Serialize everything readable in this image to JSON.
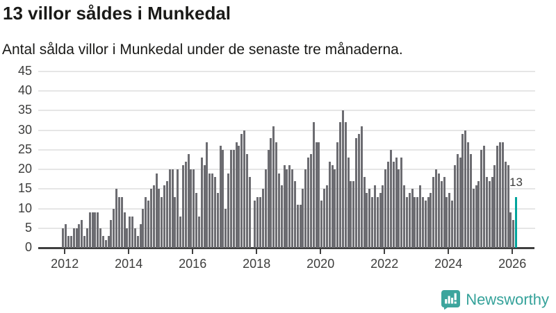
{
  "header": {
    "title": "13 villor såldes i Munkedal",
    "subtitle": "Antal sålda villor i Munkedal under de senaste tre månaderna."
  },
  "chart_data": {
    "type": "bar",
    "title": "13 villor såldes i Munkedal",
    "subtitle": "Antal sålda villor i Munkedal under de senaste tre månaderna.",
    "xlabel": "",
    "ylabel": "",
    "x_start_month": "2011-12",
    "x_end_month": "2026-02",
    "x_unit": "month",
    "values": [
      5,
      6,
      3,
      3,
      5,
      5,
      6,
      7,
      3,
      5,
      9,
      9,
      9,
      9,
      5,
      3,
      2,
      3,
      7,
      10,
      15,
      13,
      13,
      9,
      5,
      8,
      8,
      5,
      3,
      6,
      10,
      13,
      12,
      15,
      16,
      19,
      15,
      13,
      16,
      17,
      20,
      20,
      13,
      20,
      8,
      21,
      22,
      24,
      20,
      20,
      14,
      8,
      23,
      21,
      27,
      19,
      19,
      18,
      14,
      26,
      25,
      10,
      19,
      25,
      25,
      27,
      26,
      29,
      30,
      24,
      18,
      0,
      12,
      13,
      13,
      15,
      20,
      25,
      28,
      31,
      27,
      19,
      16,
      21,
      20,
      21,
      20,
      17,
      11,
      11,
      15,
      20,
      23,
      24,
      32,
      27,
      27,
      12,
      15,
      16,
      22,
      21,
      20,
      27,
      32,
      35,
      32,
      23,
      17,
      17,
      28,
      29,
      31,
      18,
      14,
      15,
      13,
      16,
      13,
      14,
      16,
      20,
      22,
      25,
      22,
      23,
      20,
      23,
      16,
      13,
      14,
      15,
      13,
      13,
      16,
      13,
      12,
      13,
      14,
      18,
      20,
      19,
      17,
      18,
      13,
      14,
      12,
      21,
      24,
      23,
      29,
      30,
      27,
      24,
      15,
      16,
      17,
      25,
      26,
      18,
      17,
      18,
      21,
      26,
      27,
      27,
      22,
      21,
      9,
      7,
      13
    ],
    "highlight": {
      "index": 170,
      "value": 13,
      "label": "13",
      "color": "#00a49c"
    },
    "bar_color": "#6c6c71",
    "grid": true,
    "legend": "none",
    "ylim": [
      0,
      45
    ],
    "yticks": [
      0,
      5,
      10,
      15,
      20,
      25,
      30,
      35,
      40,
      45
    ],
    "xticks": [
      2012,
      2014,
      2016,
      2018,
      2020,
      2022,
      2024,
      2026
    ]
  },
  "footer": {
    "brand": "Newsworthy",
    "logo_icon": "bar-chart-speech-bubble-icon",
    "brand_color": "#35a29a"
  }
}
